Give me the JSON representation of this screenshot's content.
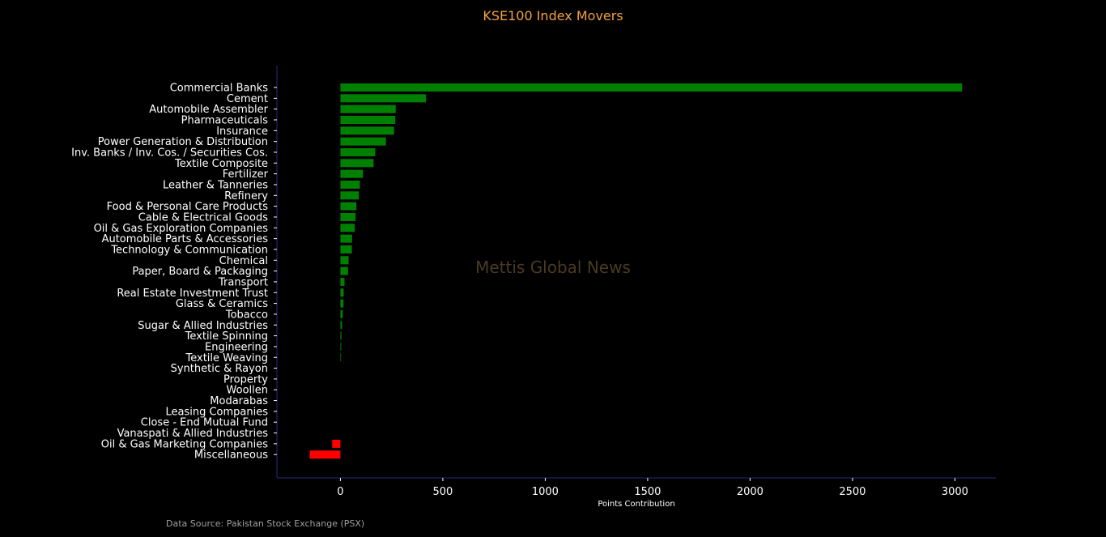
{
  "colors": {
    "background": "#000000",
    "title": "#f0a040",
    "positive": "#008000",
    "negative": "#ff0000",
    "axis": "#2a2a80",
    "text": "#ffffff",
    "watermark": "#4a3a20",
    "source": "#a0a0a0"
  },
  "source_note": "Data Source: Pakistan Stock Exchange (PSX)",
  "watermark": "Mettis Global News",
  "chart_data": {
    "type": "bar",
    "orientation": "horizontal",
    "title": "KSE100 Index Movers",
    "xlabel": "Points Contribution",
    "ylabel": "",
    "xlim": [
      -310,
      3200
    ],
    "xticks": [
      0,
      500,
      1000,
      1500,
      2000,
      2500,
      3000
    ],
    "grid": false,
    "legend": "none",
    "categories": [
      "Commercial Banks",
      "Cement",
      "Automobile Assembler",
      "Pharmaceuticals",
      "Insurance",
      "Power Generation & Distribution",
      "Inv. Banks / Inv. Cos. / Securities Cos.",
      "Textile Composite",
      "Fertilizer",
      "Leather & Tanneries",
      "Refinery",
      "Food & Personal Care Products",
      "Cable & Electrical Goods",
      "Oil & Gas Exploration Companies",
      "Automobile Parts & Accessories",
      "Technology & Communication",
      "Chemical",
      "Paper, Board & Packaging",
      "Transport",
      "Real Estate Investment Trust",
      "Glass & Ceramics",
      "Tobacco",
      "Sugar & Allied Industries",
      "Textile Spinning",
      "Engineering",
      "Textile Weaving",
      "Synthetic & Rayon",
      "Property",
      "Woollen",
      "Modarabas",
      "Leasing Companies",
      "Close - End Mutual Fund",
      "Vanaspati & Allied Industries",
      "Oil & Gas Marketing Companies",
      "Miscellaneous"
    ],
    "values": [
      3035,
      418,
      270,
      268,
      262,
      222,
      170,
      162,
      110,
      95,
      90,
      78,
      74,
      70,
      57,
      56,
      40,
      37,
      20,
      16,
      15,
      11,
      8,
      5,
      4,
      3,
      0,
      0,
      0,
      0,
      0,
      0,
      0,
      -40,
      -150
    ]
  }
}
